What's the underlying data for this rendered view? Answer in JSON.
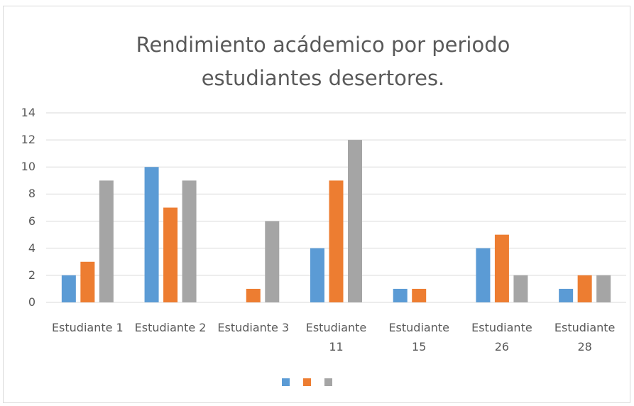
{
  "chart_data": {
    "type": "bar",
    "title": "Rendimiento acádemico por periodo estudiantes desertores.",
    "categories": [
      "Estudiante 1",
      "Estudiante 2",
      "Estudiante 3",
      "Estudiante 11",
      "Estudiante 15",
      "Estudiante 26",
      "Estudiante 28"
    ],
    "series": [
      {
        "color": "#5b9bd5",
        "values": [
          2,
          10,
          0,
          4,
          1,
          4,
          1
        ]
      },
      {
        "color": "#ed7d31",
        "values": [
          3,
          7,
          1,
          9,
          1,
          5,
          2
        ]
      },
      {
        "color": "#a5a5a5",
        "values": [
          9,
          9,
          6,
          12,
          0,
          2,
          2
        ]
      }
    ],
    "ylim": [
      0,
      14
    ],
    "yticks": [
      0,
      2,
      4,
      6,
      8,
      10,
      12,
      14
    ],
    "grid": true,
    "legend": "bottom"
  }
}
